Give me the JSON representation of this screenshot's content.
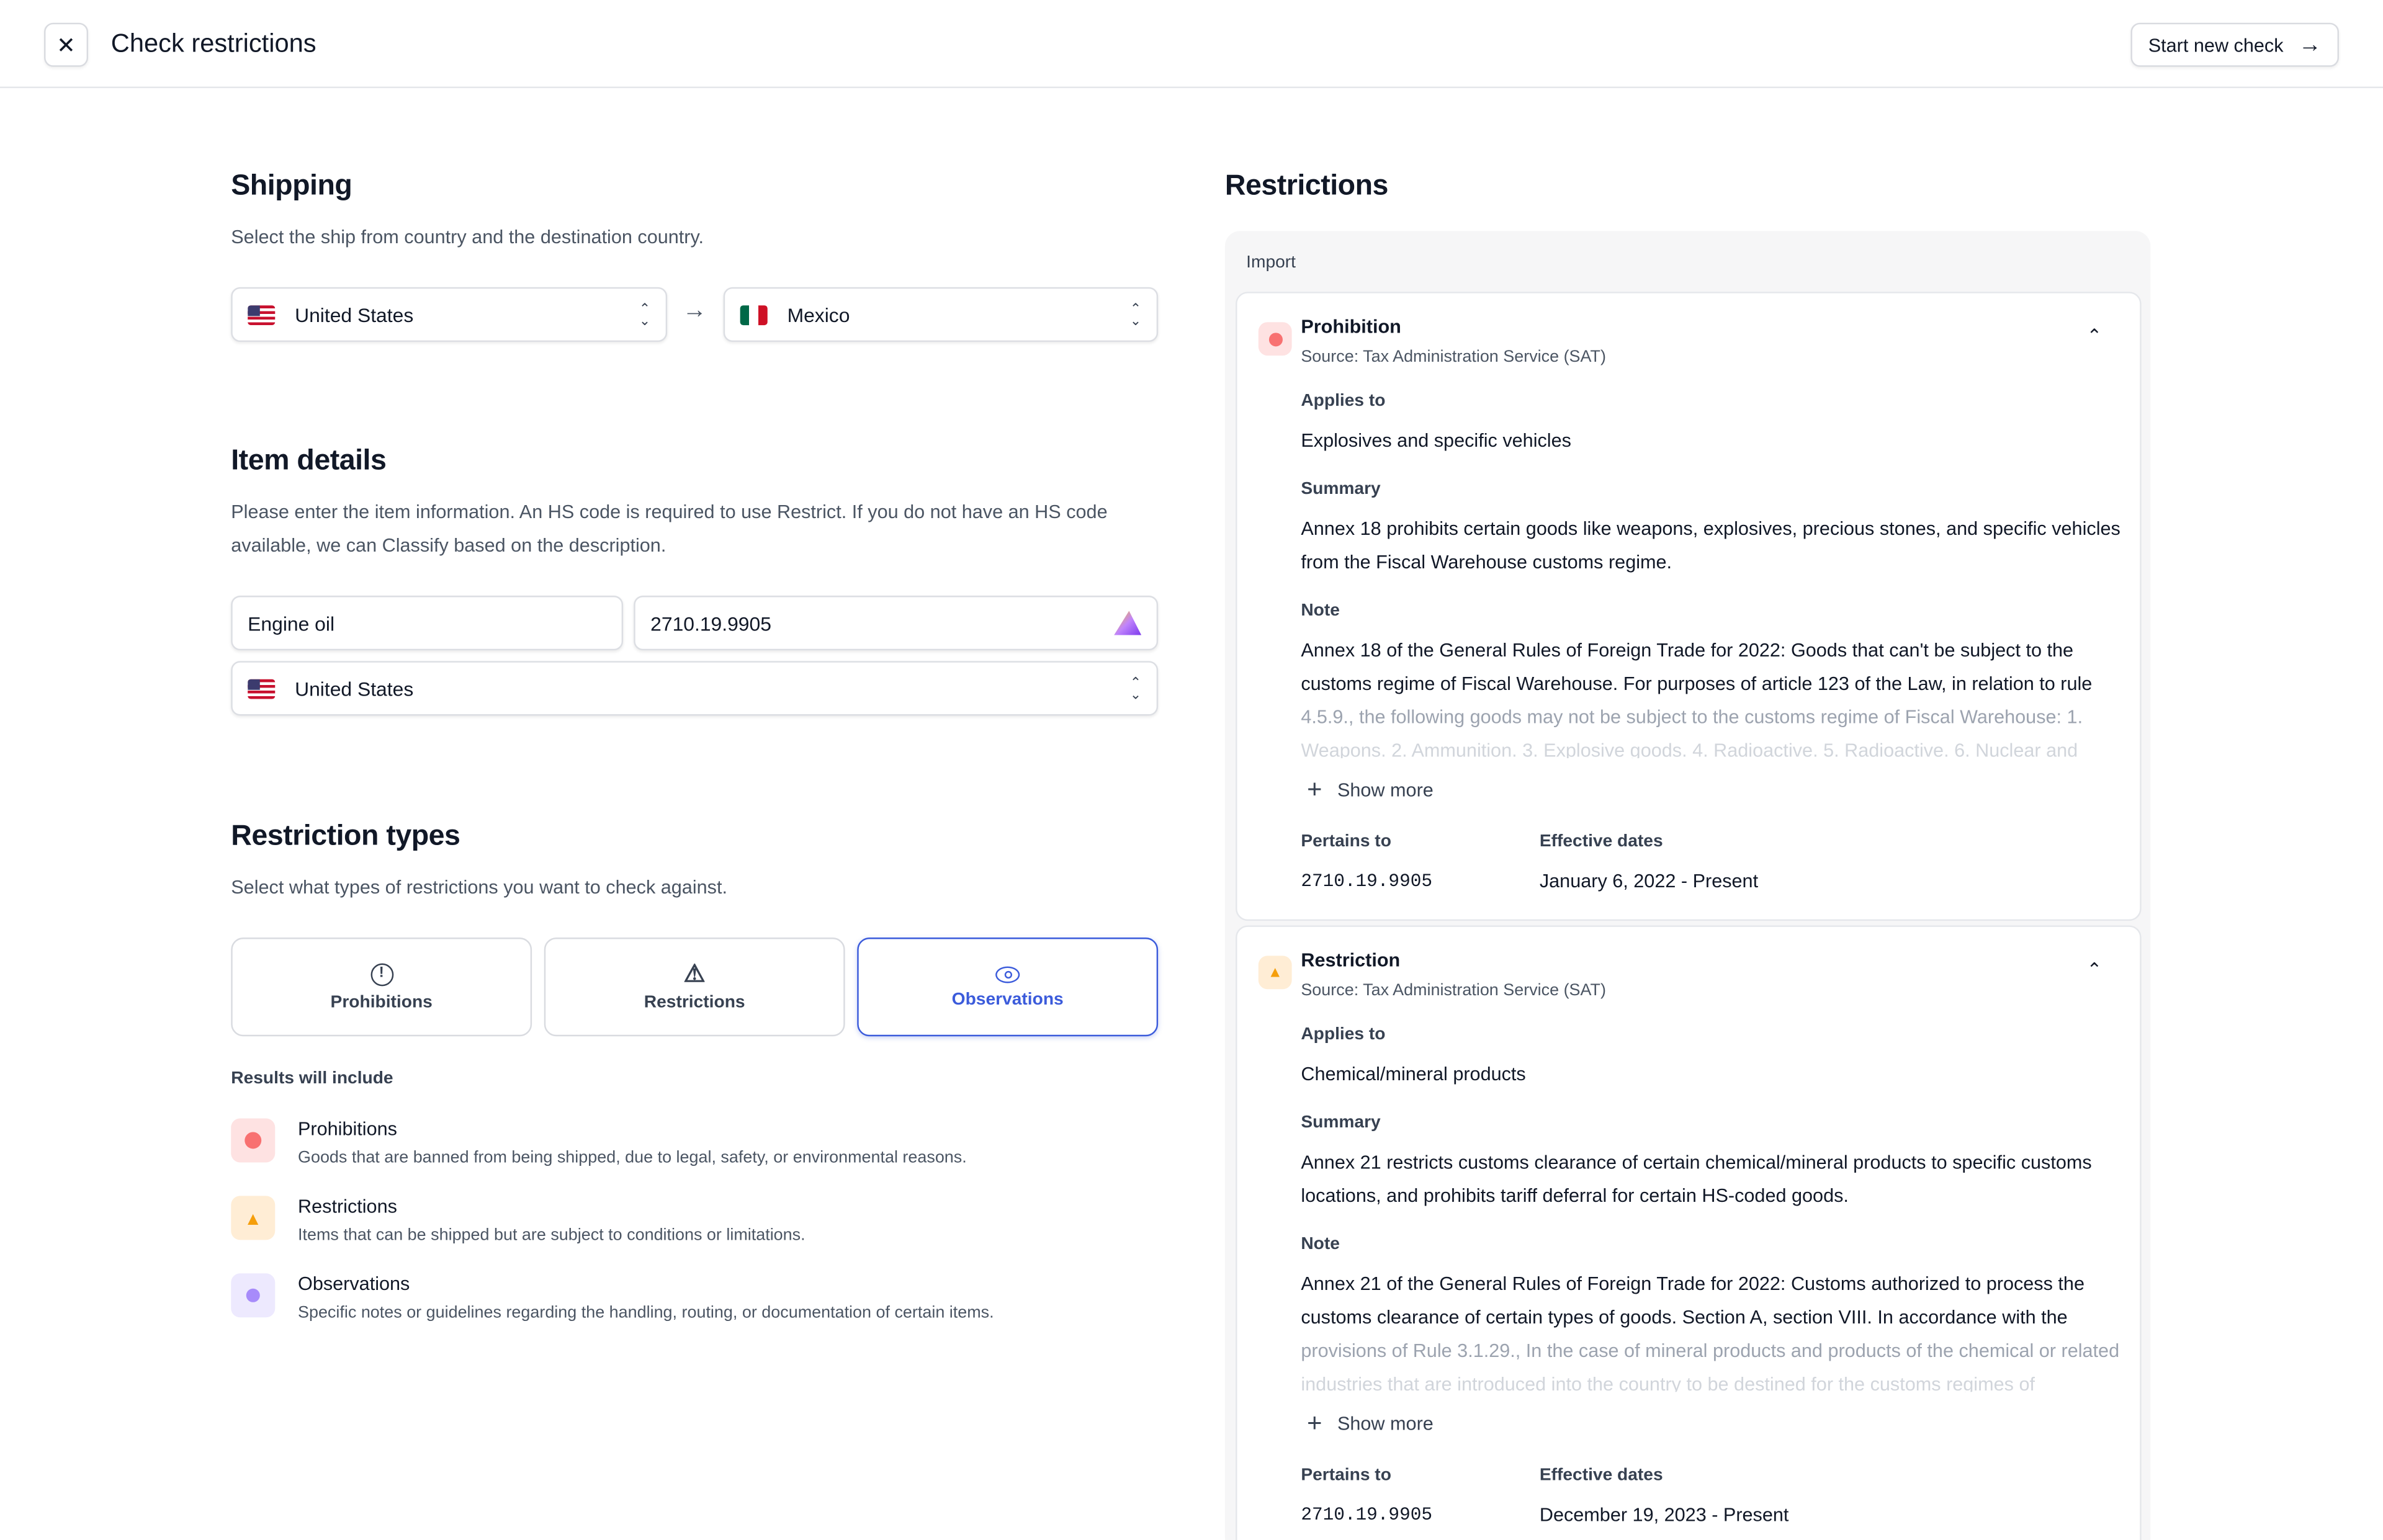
{
  "header": {
    "title": "Check restrictions",
    "start_new_label": "Start new check"
  },
  "shipping": {
    "title": "Shipping",
    "description": "Select the ship from country and the destination country.",
    "from": "United States",
    "to": "Mexico"
  },
  "item": {
    "title": "Item details",
    "description_line1": "Please enter the item information. An HS code is required to use Restrict. If you do not have an HS code",
    "description_line2": "available, we can Classify based on the description.",
    "name": "Engine oil",
    "hs_code": "2710.19.9905",
    "origin": "United States"
  },
  "types": {
    "title": "Restriction types",
    "description": "Select what types of restrictions you want to check against.",
    "options": [
      {
        "label": "Prohibitions",
        "selected": false
      },
      {
        "label": "Restrictions",
        "selected": false
      },
      {
        "label": "Observations",
        "selected": true
      }
    ],
    "results_title": "Results will include",
    "results": [
      {
        "title": "Prohibitions",
        "desc": "Goods that are banned from being shipped, due to legal, safety, or environmental reasons."
      },
      {
        "title": "Restrictions",
        "desc": "Items that can be shipped but are subject to conditions or limitations."
      },
      {
        "title": "Observations",
        "desc": "Specific notes or guidelines regarding the handling, routing, or documentation of certain items."
      }
    ]
  },
  "restrictions": {
    "title": "Restrictions",
    "group": "Import",
    "labels": {
      "applies": "Applies to",
      "summary": "Summary",
      "note": "Note",
      "show_more": "Show more",
      "pertains": "Pertains to",
      "dates": "Effective dates"
    },
    "cards": [
      {
        "type": "Prohibition",
        "source": "Source: Tax Administration Service (SAT)",
        "applies": "Explosives and specific vehicles",
        "summary": [
          "Annex 18 prohibits certain goods like weapons, explosives, precious stones, and specific vehicles",
          "from the Fiscal Warehouse customs regime."
        ],
        "note": [
          "Annex 18 of the General Rules of Foreign Trade for 2022: Goods that can't be subject to the",
          "customs regime of Fiscal Warehouse. For purposes of article 123 of the Law, in relation to rule",
          "4.5.9., the following goods may not be subject to the customs regime of Fiscal Warehouse: 1.",
          "Weapons. 2. Ammunition. 3. Explosive goods. 4. Radioactive. 5. Radioactive. 6. Nuclear and"
        ],
        "pertains": "2710.19.9905",
        "dates": "January 6, 2022 - Present"
      },
      {
        "type": "Restriction",
        "source": "Source: Tax Administration Service (SAT)",
        "applies": "Chemical/mineral products",
        "summary": [
          "Annex 21 restricts customs clearance of certain chemical/mineral products to specific customs",
          "locations, and prohibits tariff deferral for certain HS-coded goods."
        ],
        "note": [
          "Annex 21 of the General Rules of Foreign Trade for 2022: Customs authorized to process the",
          "customs clearance of certain types of goods. Section A, section VIII. In accordance with the",
          "provisions of Rule 3.1.29., In the case of mineral products and products of the chemical or related",
          "industries that are introduced into the country to be destined for the customs regimes of"
        ],
        "pertains": "2710.19.9905",
        "dates": "December 19, 2023 - Present"
      }
    ]
  },
  "colors": {
    "accent": "#3b5bdb",
    "prohibition": "#ef4444",
    "restriction": "#f59e0b",
    "observation": "#8b5cf6"
  }
}
